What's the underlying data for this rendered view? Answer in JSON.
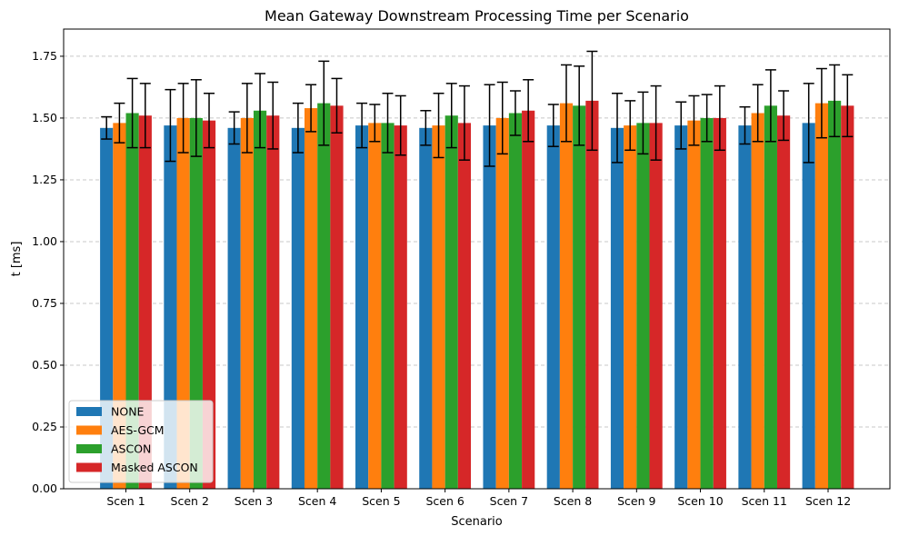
{
  "chart_data": {
    "type": "bar",
    "title": "Mean Gateway Downstream Processing Time per Scenario",
    "xlabel": "Scenario",
    "ylabel": "t [ms]",
    "ylim": [
      0,
      1.86
    ],
    "yticks": [
      "0.00",
      "0.25",
      "0.50",
      "0.75",
      "1.00",
      "1.25",
      "1.50",
      "1.75"
    ],
    "grid": "y-dashed",
    "legend_position": "lower-left",
    "categories": [
      "Scen 1",
      "Scen 2",
      "Scen 3",
      "Scen 4",
      "Scen 5",
      "Scen 6",
      "Scen 7",
      "Scen 8",
      "Scen 9",
      "Scen 10",
      "Scen 11",
      "Scen 12"
    ],
    "series": [
      {
        "name": "NONE",
        "color": "#1f77b4",
        "values": [
          1.46,
          1.47,
          1.46,
          1.46,
          1.47,
          1.46,
          1.47,
          1.47,
          1.46,
          1.47,
          1.47,
          1.48
        ],
        "errors": [
          0.045,
          0.145,
          0.065,
          0.1,
          0.09,
          0.07,
          0.165,
          0.085,
          0.14,
          0.095,
          0.075,
          0.16
        ]
      },
      {
        "name": "AES-GCM",
        "color": "#ff7f0e",
        "values": [
          1.48,
          1.5,
          1.5,
          1.54,
          1.48,
          1.47,
          1.5,
          1.56,
          1.47,
          1.49,
          1.52,
          1.56
        ],
        "errors": [
          0.08,
          0.14,
          0.14,
          0.095,
          0.075,
          0.13,
          0.145,
          0.155,
          0.1,
          0.1,
          0.115,
          0.14
        ]
      },
      {
        "name": "ASCON",
        "color": "#2ca02c",
        "values": [
          1.52,
          1.5,
          1.53,
          1.56,
          1.48,
          1.51,
          1.52,
          1.55,
          1.48,
          1.5,
          1.55,
          1.57
        ],
        "errors": [
          0.14,
          0.155,
          0.15,
          0.17,
          0.12,
          0.13,
          0.09,
          0.16,
          0.125,
          0.095,
          0.145,
          0.145
        ]
      },
      {
        "name": "Masked ASCON",
        "color": "#d62728",
        "values": [
          1.51,
          1.49,
          1.51,
          1.55,
          1.47,
          1.48,
          1.53,
          1.57,
          1.48,
          1.5,
          1.51,
          1.55
        ],
        "errors": [
          0.13,
          0.11,
          0.135,
          0.11,
          0.12,
          0.15,
          0.125,
          0.2,
          0.15,
          0.13,
          0.1,
          0.125
        ]
      }
    ]
  }
}
